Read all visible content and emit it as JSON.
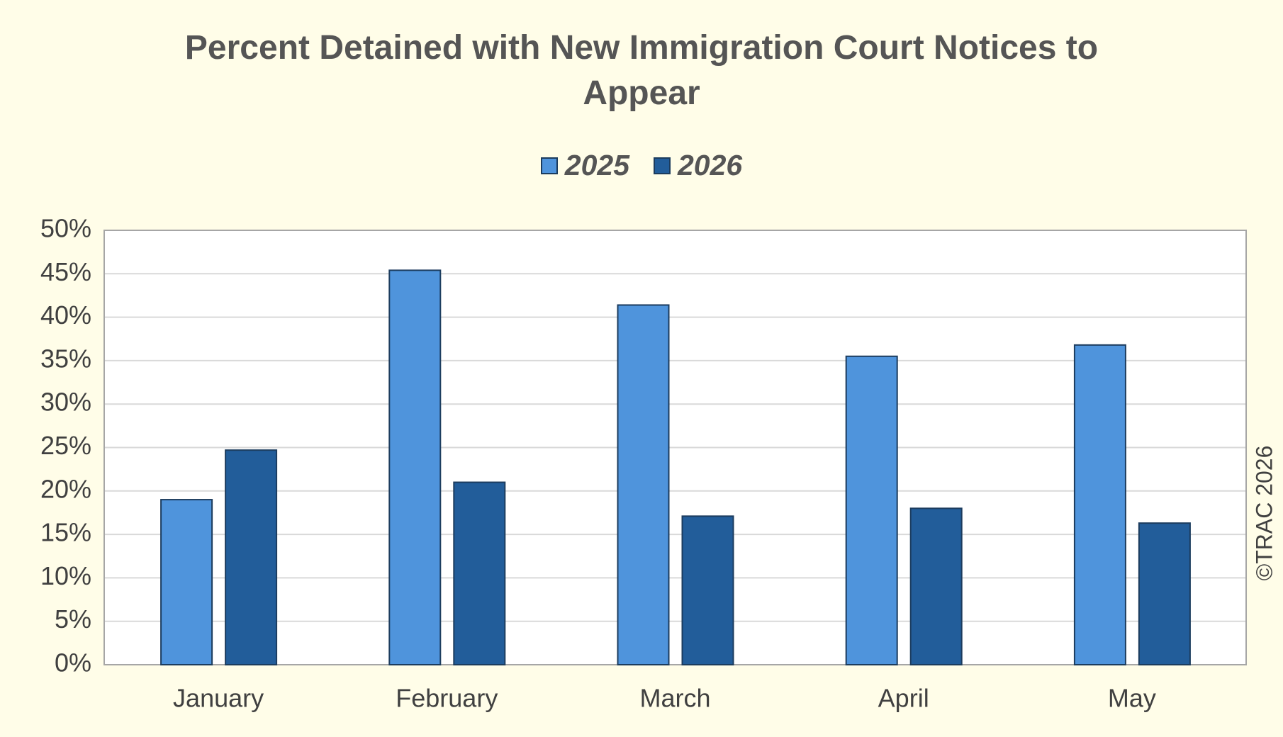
{
  "chart_data": {
    "type": "bar",
    "title": "Percent Detained with New Immigration Court Notices to Appear",
    "categories": [
      "January",
      "February",
      "March",
      "April",
      "May"
    ],
    "series": [
      {
        "name": "2025",
        "color": "#4f94dc",
        "values": [
          19,
          45.4,
          41.4,
          35.5,
          36.8
        ]
      },
      {
        "name": "2026",
        "color": "#225d9a",
        "values": [
          24.7,
          21,
          17.1,
          18,
          16.3
        ]
      }
    ],
    "ylim": [
      0,
      50
    ],
    "yticks": [
      {
        "value": 0,
        "label": "0%"
      },
      {
        "value": 5,
        "label": "5%"
      },
      {
        "value": 10,
        "label": "10%"
      },
      {
        "value": 15,
        "label": "15%"
      },
      {
        "value": 20,
        "label": "20%"
      },
      {
        "value": 25,
        "label": "25%"
      },
      {
        "value": 30,
        "label": "30%"
      },
      {
        "value": 35,
        "label": "35%"
      },
      {
        "value": 40,
        "label": "40%"
      },
      {
        "value": 45,
        "label": "45%"
      },
      {
        "value": 50,
        "label": "50%"
      }
    ],
    "grid": true,
    "legend": "top",
    "annotation": "©TRAC 2026"
  }
}
